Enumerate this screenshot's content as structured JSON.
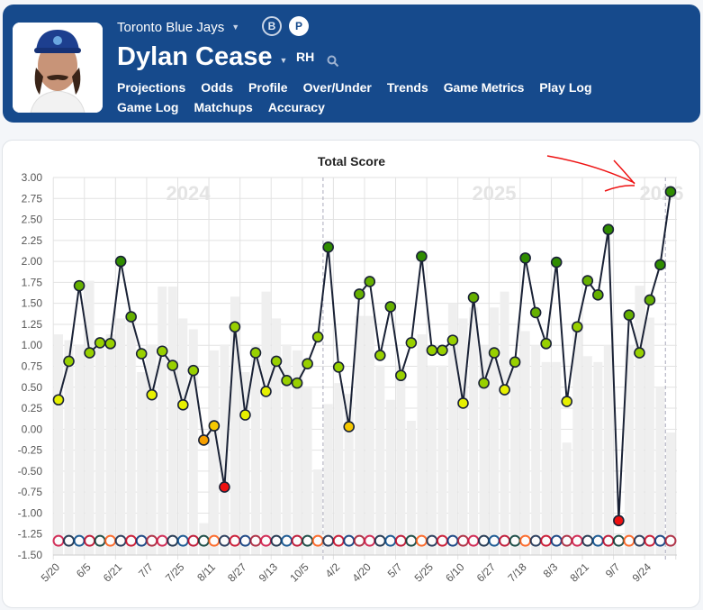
{
  "header": {
    "team": "Toronto Blue Jays",
    "toggle_b": "B",
    "toggle_p": "P",
    "player_name": "Dylan Cease",
    "handedness": "RH",
    "nav": [
      "Projections",
      "Odds",
      "Profile",
      "Over/Under",
      "Trends",
      "Game Metrics",
      "Play Log",
      "Game Log",
      "Matchups",
      "Accuracy"
    ],
    "active_nav": "Game Metrics",
    "brand_color": "#164a8c"
  },
  "chart_data": {
    "type": "line",
    "title": "Total Score",
    "ylim": [
      -1.5,
      3.0
    ],
    "yticks": [
      "3.00",
      "2.75",
      "2.50",
      "2.25",
      "2.00",
      "1.75",
      "1.50",
      "1.25",
      "1.00",
      "0.75",
      "0.50",
      "0.25",
      "0.00",
      "-0.25",
      "-0.50",
      "-0.75",
      "-1.00",
      "-1.25",
      "-1.50"
    ],
    "xtick_labels": [
      "5/20",
      "6/5",
      "6/21",
      "7/7",
      "7/25",
      "8/11",
      "8/27",
      "9/13",
      "10/5",
      "4/2",
      "4/20",
      "5/7",
      "5/25",
      "6/10",
      "6/27",
      "7/18",
      "8/3",
      "8/21",
      "9/7",
      "9/24"
    ],
    "season_labels": [
      "2024",
      "2025",
      "2026"
    ],
    "grid": true,
    "line_values": [
      0.35,
      0.81,
      1.71,
      0.91,
      1.03,
      1.02,
      2.0,
      1.34,
      0.9,
      0.41,
      0.93,
      0.76,
      0.29,
      0.7,
      -0.13,
      0.04,
      -0.69,
      1.22,
      0.17,
      0.91,
      0.45,
      0.81,
      0.58,
      0.55,
      0.78,
      1.1,
      2.17,
      0.74,
      0.03,
      1.61,
      1.76,
      0.88,
      1.46,
      0.64,
      1.03,
      2.06,
      0.94,
      0.94,
      1.06,
      0.31,
      1.57,
      0.55,
      0.91,
      0.47,
      0.8,
      2.04,
      1.39,
      1.02,
      1.99,
      0.33,
      1.22,
      1.77,
      1.6,
      2.38,
      -1.09,
      1.36,
      0.91,
      1.54,
      1.96,
      2.83
    ],
    "bar_values": [
      1.13,
      1.06,
      1.01,
      1.77,
      1.0,
      1.13,
      1.32,
      1.3,
      0.68,
      1.01,
      1.7,
      1.7,
      1.32,
      1.19,
      -1.12,
      0.94,
      1.01,
      1.58,
      0.68,
      1.01,
      1.64,
      1.32,
      1.01,
      0.94,
      0.49,
      -0.48,
      0.3,
      0.55,
      0.42,
      1.35,
      1.35,
      0.76,
      0.35,
      0.76,
      0.1,
      1.13,
      0.76,
      0.76,
      1.5,
      1.32,
      1.45,
      1.0,
      1.45,
      1.64,
      0.82,
      1.17,
      1.0,
      0.8,
      0.8,
      -0.16,
      1.28,
      0.87,
      0.8,
      1.0,
      -1.4,
      1.0,
      1.71,
      1.33,
      0.5,
      -0.04
    ],
    "season_breaks_after_index": [
      25,
      58
    ],
    "colors": {
      "line": "#1a2236",
      "bar": "#efefef",
      "red": "#ee1111",
      "orange": "#f7a000",
      "gold": "#f5c800",
      "yellow": "#e6f000",
      "lime": "#98d000",
      "green": "#66b000",
      "darkgreen": "#2f8c00"
    }
  }
}
